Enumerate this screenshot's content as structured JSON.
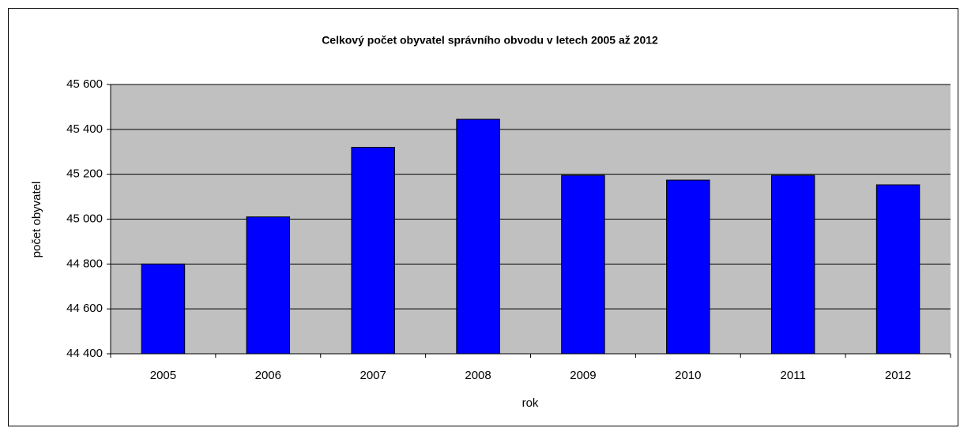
{
  "chart_data": {
    "type": "bar",
    "title": "Celkový počet obyvatel správního obvodu v letech 2005 až 2012",
    "x_label": "rok",
    "y_label": "počet obyvatel",
    "categories": [
      "2005",
      "2006",
      "2007",
      "2008",
      "2009",
      "2010",
      "2011",
      "2012"
    ],
    "values": [
      44800,
      45010,
      45320,
      45445,
      45195,
      45174,
      45195,
      45153
    ],
    "color": "#0000ff",
    "ylim": [
      44400,
      45600
    ],
    "yticks": [
      {
        "value": 44400,
        "label": "44 400"
      },
      {
        "value": 44600,
        "label": "44 600"
      },
      {
        "value": 44800,
        "label": "44 800"
      },
      {
        "value": 45000,
        "label": "45 000"
      },
      {
        "value": 45200,
        "label": "45 200"
      },
      {
        "value": 45400,
        "label": "45 400"
      },
      {
        "value": 45600,
        "label": "45 600"
      }
    ],
    "grid": true
  }
}
